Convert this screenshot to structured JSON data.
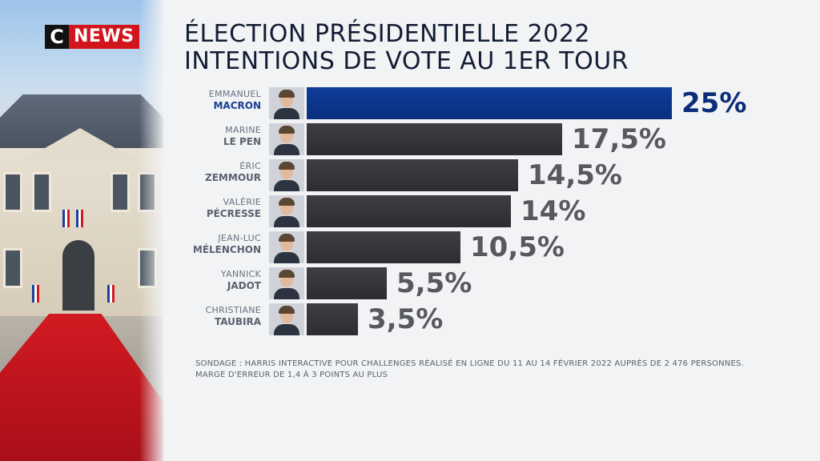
{
  "logo": {
    "letter": "C",
    "word": "NEWS"
  },
  "title": {
    "line1": "ÉLECTION PRÉSIDENTIELLE 2022",
    "line2": "INTENTIONS DE VOTE AU 1ER TOUR"
  },
  "colors": {
    "lead_bar": "#0f3d9a",
    "other_bar": "#333539",
    "lead_value": "#0c2e7a",
    "other_value": "#57595e",
    "brand_red": "#d2151c"
  },
  "chart_data": {
    "type": "bar",
    "orientation": "horizontal",
    "candidates": [
      {
        "first": "EMMANUEL",
        "last": "MACRON",
        "value": 25,
        "label": "25%",
        "lead": true
      },
      {
        "first": "MARINE",
        "last": "LE PEN",
        "value": 17.5,
        "label": "17,5%",
        "lead": false
      },
      {
        "first": "ÉRIC",
        "last": "ZEMMOUR",
        "value": 14.5,
        "label": "14,5%",
        "lead": false
      },
      {
        "first": "VALÉRIE",
        "last": "PÉCRESSE",
        "value": 14,
        "label": "14%",
        "lead": false
      },
      {
        "first": "JEAN-LUC",
        "last": "MÉLENCHON",
        "value": 10.5,
        "label": "10,5%",
        "lead": false
      },
      {
        "first": "YANNICK",
        "last": "JADOT",
        "value": 5.5,
        "label": "5,5%",
        "lead": false
      },
      {
        "first": "CHRISTIANE",
        "last": "TAUBIRA",
        "value": 3.5,
        "label": "3,5%",
        "lead": false
      }
    ]
  },
  "source": {
    "line1": "SONDAGE : HARRIS INTERACTIVE POUR CHALLENGES RÉALISÉ EN LIGNE DU 11 AU 14 FÉVRIER 2022 AUPRÈS DE 2 476 PERSONNES.",
    "line2": "MARGE D'ERREUR DE 1,4 À 3 POINTS AU PLUS"
  }
}
